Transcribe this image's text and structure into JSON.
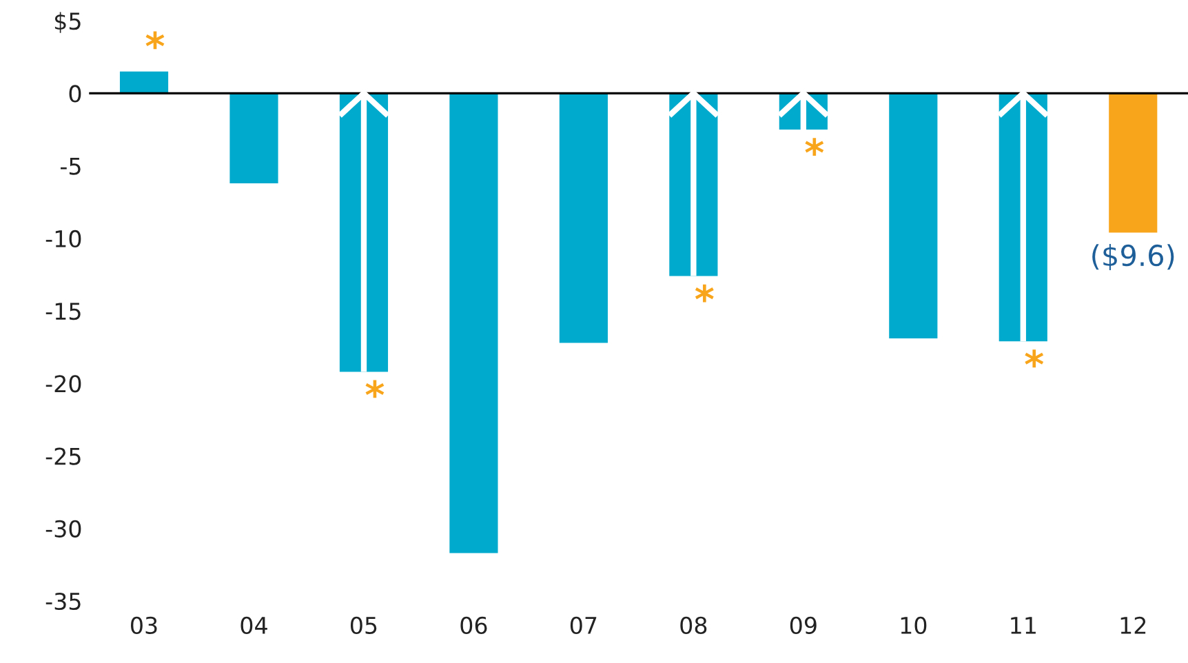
{
  "chart_data": {
    "type": "bar",
    "categories": [
      "03",
      "04",
      "05",
      "06",
      "07",
      "08",
      "09",
      "10",
      "11",
      "12"
    ],
    "values": [
      1.5,
      -6.2,
      -19.2,
      -31.7,
      -17.2,
      -12.6,
      -2.5,
      -16.9,
      -17.1,
      -9.6
    ],
    "colors": [
      "#00aacc",
      "#00aacc",
      "#00aacc",
      "#00aacc",
      "#00aacc",
      "#00aacc",
      "#00aacc",
      "#00aacc",
      "#00aacc",
      "#f9a51b"
    ],
    "value_labels": [
      null,
      null,
      null,
      null,
      null,
      null,
      null,
      null,
      null,
      "($9.6)"
    ],
    "annotations": [
      {
        "text": "*",
        "x": "03",
        "y": 1.5
      },
      {
        "text": "*",
        "x": "05",
        "y": -19.2
      },
      {
        "text": "*",
        "x": "08",
        "y": -12.6
      },
      {
        "text": "*",
        "x": "09",
        "y": -2.5
      },
      {
        "text": "*",
        "x": "11",
        "y": -17.1
      }
    ],
    "ref_lines": [
      {
        "axis": "y",
        "value": 0,
        "color": "#000000"
      }
    ],
    "ylim": [
      -35,
      5
    ],
    "yticks": [
      {
        "value": 5,
        "label": "$5"
      },
      0,
      -5,
      -10,
      -15,
      -20,
      -25,
      -30,
      -35
    ],
    "grid": false
  }
}
